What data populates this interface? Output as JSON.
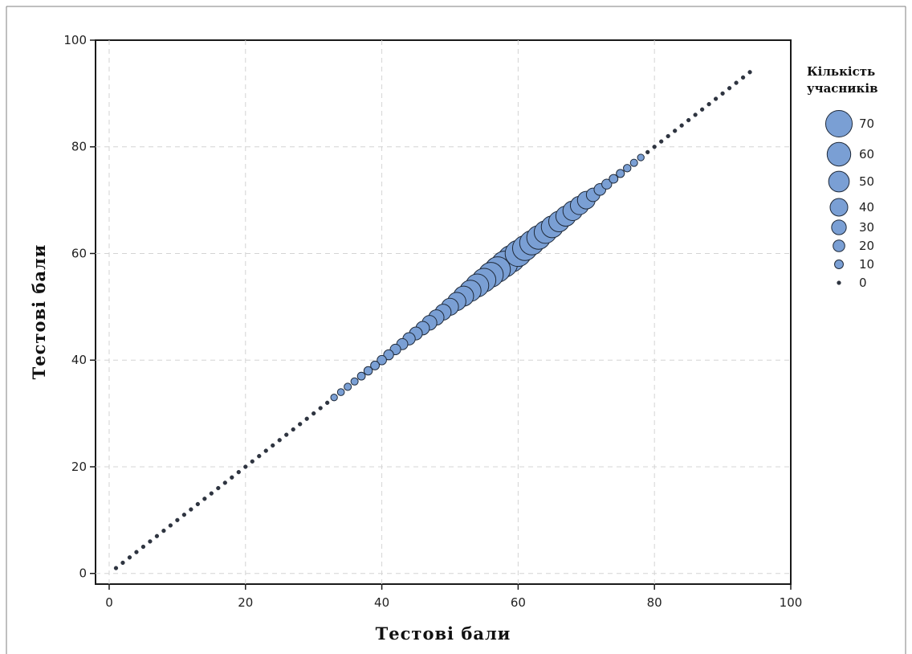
{
  "chart_data": {
    "type": "scatter",
    "xlabel": "Тестові бали",
    "ylabel": "Тестові бали",
    "xlim": [
      -2,
      100
    ],
    "ylim": [
      -2,
      100
    ],
    "x_ticks": [
      "0",
      "20",
      "40",
      "60",
      "80",
      "100"
    ],
    "y_ticks": [
      "0",
      "20",
      "40",
      "60",
      "80",
      "100"
    ],
    "grid": true,
    "marker_color": "#7a9fd4",
    "marker_edge_color": "#1f2a3a",
    "size_legend": {
      "title": [
        "Кількість",
        "учасників"
      ],
      "position": "right",
      "entries": [
        {
          "label": "70",
          "value": 70
        },
        {
          "label": "60",
          "value": 60
        },
        {
          "label": "50",
          "value": 50
        },
        {
          "label": "40",
          "value": 40
        },
        {
          "label": "30",
          "value": 30
        },
        {
          "label": "20",
          "value": 20
        },
        {
          "label": "10",
          "value": 10
        },
        {
          "label": "0",
          "value": 0
        }
      ]
    },
    "points": {
      "x": [
        1,
        2,
        3,
        4,
        5,
        6,
        7,
        8,
        9,
        10,
        11,
        12,
        13,
        14,
        15,
        16,
        17,
        18,
        19,
        20,
        21,
        22,
        23,
        24,
        25,
        26,
        27,
        28,
        29,
        30,
        31,
        32,
        33,
        34,
        35,
        36,
        37,
        38,
        39,
        40,
        41,
        42,
        43,
        44,
        45,
        46,
        47,
        48,
        49,
        50,
        51,
        52,
        53,
        54,
        55,
        56,
        57,
        58,
        59,
        60,
        61,
        62,
        63,
        64,
        65,
        66,
        67,
        68,
        69,
        70,
        71,
        72,
        73,
        74,
        75,
        76,
        77,
        78,
        79,
        80,
        81,
        82,
        83,
        84,
        85,
        86,
        87,
        88,
        89,
        90,
        91,
        92,
        93,
        94
      ],
      "y": [
        1,
        2,
        3,
        4,
        5,
        6,
        7,
        8,
        9,
        10,
        11,
        12,
        13,
        14,
        15,
        16,
        17,
        18,
        19,
        20,
        21,
        22,
        23,
        24,
        25,
        26,
        27,
        28,
        29,
        30,
        31,
        32,
        33,
        34,
        35,
        36,
        37,
        38,
        39,
        40,
        41,
        42,
        43,
        44,
        45,
        46,
        47,
        48,
        49,
        50,
        51,
        52,
        53,
        54,
        55,
        56,
        57,
        58,
        59,
        60,
        61,
        62,
        63,
        64,
        65,
        66,
        67,
        68,
        69,
        70,
        71,
        72,
        73,
        74,
        75,
        76,
        77,
        78,
        79,
        80,
        81,
        82,
        83,
        84,
        85,
        86,
        87,
        88,
        89,
        90,
        91,
        92,
        93,
        94
      ],
      "count": [
        0,
        0,
        0,
        0,
        0,
        0,
        0,
        0,
        0,
        0,
        0,
        0,
        0,
        0,
        0,
        0,
        0,
        0,
        0,
        0,
        0,
        0,
        0,
        0,
        0,
        0,
        0,
        0,
        0,
        0,
        0,
        0,
        3,
        4,
        5,
        5,
        7,
        9,
        10,
        12,
        14,
        16,
        18,
        22,
        24,
        26,
        30,
        32,
        34,
        38,
        42,
        48,
        52,
        58,
        60,
        64,
        66,
        68,
        70,
        68,
        64,
        62,
        60,
        56,
        54,
        50,
        48,
        46,
        42,
        40,
        26,
        20,
        14,
        10,
        8,
        6,
        5,
        3,
        0,
        0,
        0,
        0,
        0,
        0,
        0,
        0,
        0,
        0,
        0,
        0,
        0,
        0,
        0,
        0
      ]
    }
  }
}
